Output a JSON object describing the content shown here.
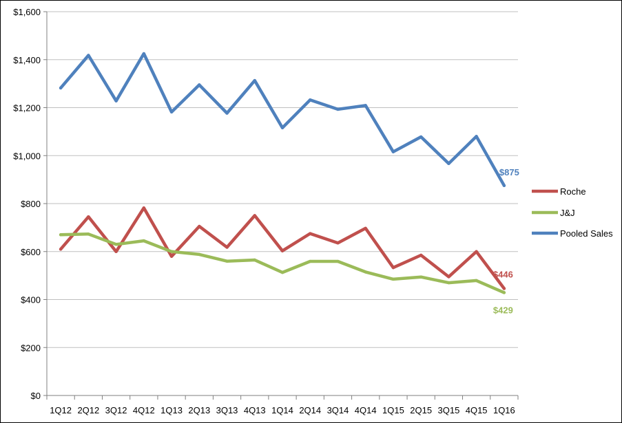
{
  "chart_data": {
    "type": "line",
    "categories": [
      "1Q12",
      "2Q12",
      "3Q12",
      "4Q12",
      "1Q13",
      "2Q13",
      "3Q13",
      "4Q13",
      "1Q14",
      "2Q14",
      "3Q14",
      "4Q14",
      "1Q15",
      "2Q15",
      "3Q15",
      "4Q15",
      "1Q16"
    ],
    "ylim": [
      0,
      1600
    ],
    "yticks": [
      0,
      200,
      400,
      600,
      800,
      1000,
      1200,
      1400,
      1600
    ],
    "ytick_labels": [
      "$0",
      "$200",
      "$400",
      "$600",
      "$800",
      "$1,000",
      "$1,200",
      "$1,400",
      "$1,600"
    ],
    "grid": true,
    "legend_position": "right",
    "series": [
      {
        "name": "Roche",
        "color": "#c0504d",
        "values": [
          610,
          745,
          600,
          782,
          580,
          705,
          618,
          750,
          603,
          675,
          636,
          697,
          533,
          585,
          495,
          600,
          446
        ],
        "end_label": "$446"
      },
      {
        "name": "J&J",
        "color": "#9bbb59",
        "values": [
          670,
          673,
          630,
          645,
          600,
          588,
          560,
          565,
          513,
          559,
          559,
          515,
          485,
          494,
          470,
          479,
          429
        ],
        "end_label": "$429"
      },
      {
        "name": "Pooled Sales",
        "color": "#4f81bd",
        "values": [
          1282,
          1418,
          1228,
          1425,
          1182,
          1295,
          1177,
          1313,
          1116,
          1232,
          1193,
          1209,
          1016,
          1078,
          967,
          1080,
          875
        ],
        "end_label": "$875"
      }
    ]
  }
}
